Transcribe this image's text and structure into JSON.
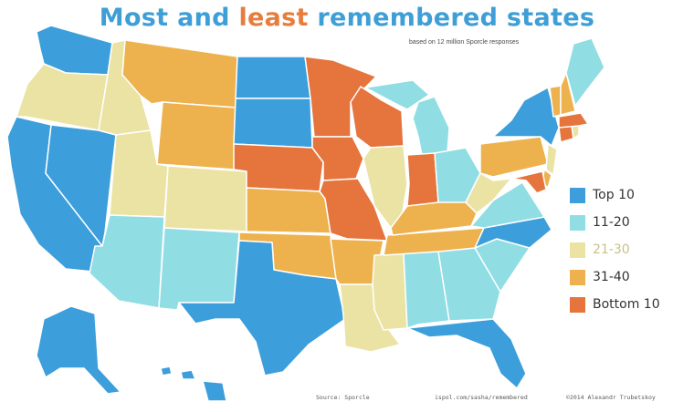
{
  "title": {
    "part1": "Most and ",
    "part2": "least",
    "part3": " remembered states"
  },
  "subtitle": "based on 12 million Sporcle responses",
  "colors": {
    "top10": "#3c9edb",
    "r11_20": "#90dde4",
    "r21_30": "#ebe3a4",
    "r31_40": "#edb24e",
    "bottom10": "#e5743d"
  },
  "legend": [
    {
      "label": "Top 10",
      "color": "#3c9edb"
    },
    {
      "label": "11-20",
      "color": "#90dde4"
    },
    {
      "label": "21-30",
      "color": "#ebe3a4"
    },
    {
      "label": "31-40",
      "color": "#edb24e"
    },
    {
      "label": "Bottom 10",
      "color": "#e5743d"
    }
  ],
  "footer": {
    "source": "Source: Sporcle",
    "url": "ispol.com/sasha/remembered",
    "credit": "©2014 Alexandr Trubetskoy"
  }
}
